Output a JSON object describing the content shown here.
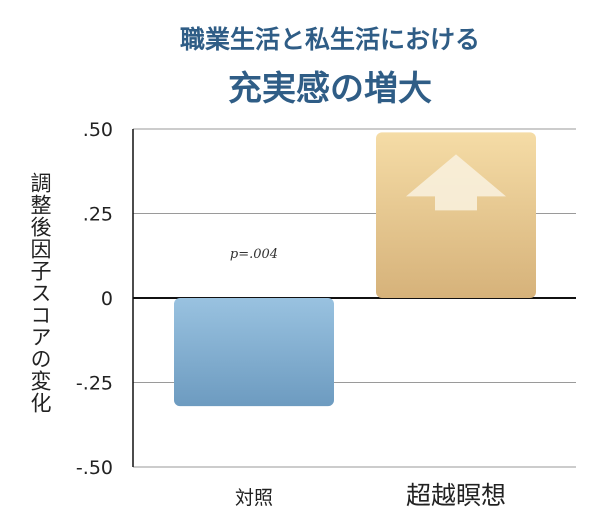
{
  "chart_data": {
    "type": "bar",
    "title_line1": "職業生活と私生活における",
    "title_line2": "充実感の増大",
    "ylabel": "調整後因子スコアの変化",
    "categories": [
      "対照",
      "超越瞑想"
    ],
    "values": [
      -0.32,
      0.49
    ],
    "ylim": [
      -0.5,
      0.5
    ],
    "yticks": [
      0.5,
      0.25,
      0,
      -0.25,
      -0.5
    ],
    "ytick_labels": [
      ".50",
      ".25",
      "0",
      "-.25",
      "-.50"
    ],
    "grid": true,
    "annotation": "p=.004",
    "colors": {
      "control_top": "#99c2e0",
      "control_bottom": "#6d9bc0",
      "tm_top": "#f5dca6",
      "tm_bottom": "#d6b27a",
      "arrow": "#f8efdc",
      "title": "#2f5d86"
    },
    "icons": [
      "up-arrow-icon"
    ]
  }
}
